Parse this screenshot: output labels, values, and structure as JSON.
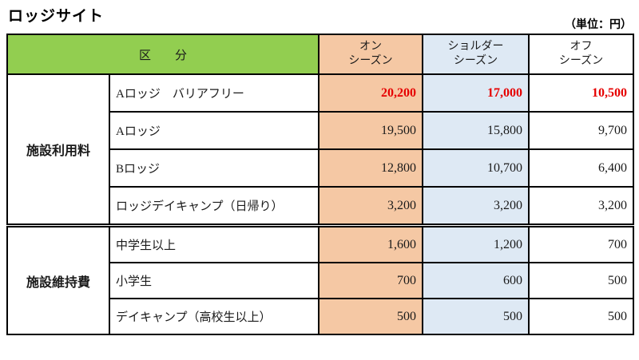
{
  "page": {
    "title": "ロッジサイト",
    "unit_note": "（単位：円）"
  },
  "colors": {
    "category_header_green": "#92CE50",
    "on_season_bg": "#F5C8A4",
    "shoulder_season_bg": "#DEE9F4",
    "off_season_bg": "#FFFFFF",
    "highlight_red": "#E60000"
  },
  "table": {
    "category_header": "区　　分",
    "season_headers": [
      {
        "line1": "オン",
        "line2": "シーズン"
      },
      {
        "line1": "ショルダー",
        "line2": "シーズン"
      },
      {
        "line1": "オフ",
        "line2": "シーズン"
      }
    ],
    "groups": [
      {
        "label": "施設利用料",
        "rows": [
          {
            "item": "Aロッジ　バリアフリー",
            "on": "20,200",
            "shoulder": "17,000",
            "off": "10,500"
          },
          {
            "item": "Aロッジ",
            "on": "19,500",
            "shoulder": "15,800",
            "off": "9,700"
          },
          {
            "item": "Bロッジ",
            "on": "12,800",
            "shoulder": "10,700",
            "off": "6,400"
          },
          {
            "item": "ロッジデイキャンプ（日帰り）",
            "on": "3,200",
            "shoulder": "3,200",
            "off": "3,200"
          }
        ]
      },
      {
        "label": "施設維持費",
        "rows": [
          {
            "item": "中学生以上",
            "on": "1,600",
            "shoulder": "1,200",
            "off": "700"
          },
          {
            "item": "小学生",
            "on": "700",
            "shoulder": "600",
            "off": "500"
          },
          {
            "item": "デイキャンプ（高校生以上）",
            "on": "500",
            "shoulder": "500",
            "off": "500"
          }
        ]
      }
    ]
  }
}
